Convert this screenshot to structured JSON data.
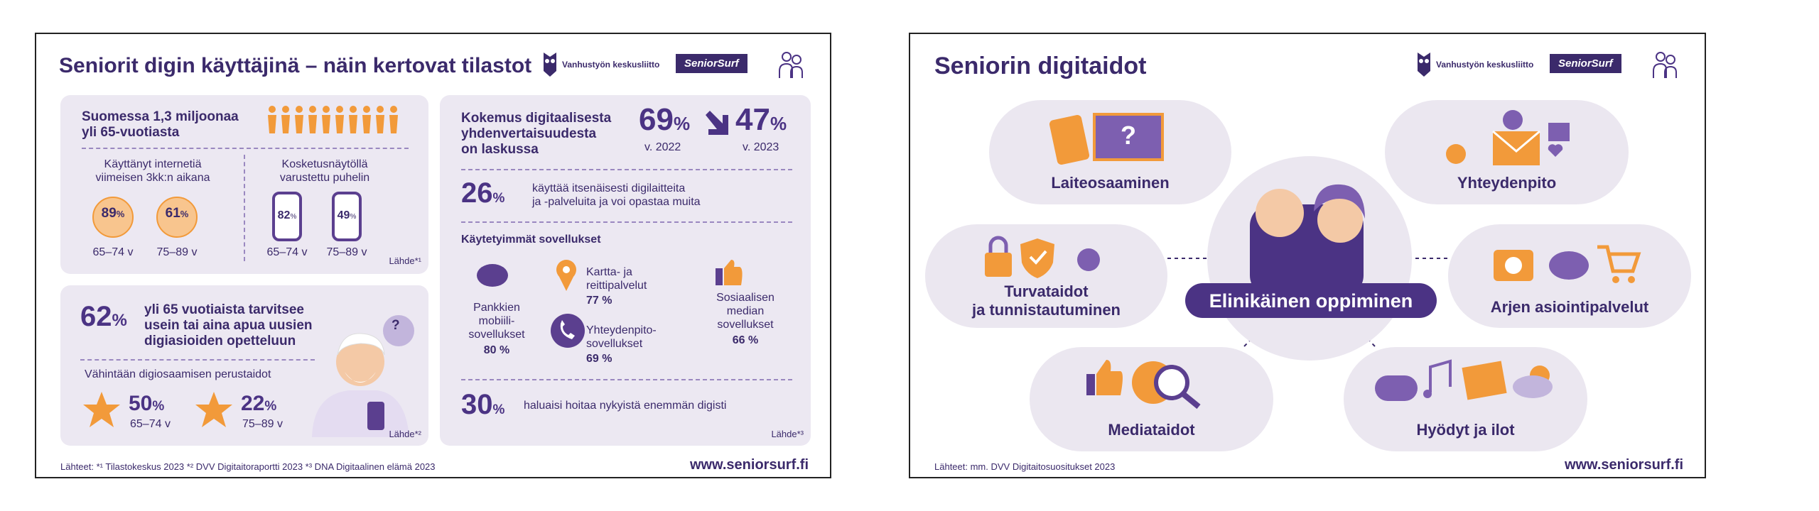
{
  "left": {
    "title": "Seniorit digin käyttäjinä – näin kertovat tilastot",
    "logos": [
      "Vanhustyön keskusliitto",
      "SeniorSurf"
    ],
    "population": "Suomessa 1,3 miljoonaa\nyli 65-vuotiasta",
    "internet": {
      "label": "Käyttänyt internetiä\nviimeisen 3kk:n aikana",
      "stats": [
        {
          "value": "89",
          "unit": "%",
          "group": "65–74 v"
        },
        {
          "value": "61",
          "unit": "%",
          "group": "75–89 v"
        }
      ]
    },
    "touchscreen": {
      "label": "Kosketusnäytöllä\nvarustettu puhelin",
      "stats": [
        {
          "value": "82",
          "unit": "%",
          "group": "65–74 v"
        },
        {
          "value": "49",
          "unit": "%",
          "group": "75–89 v"
        }
      ]
    },
    "source_1": "Lähde*¹",
    "help": {
      "value": "62",
      "unit": "%",
      "text": "yli 65 vuotiaista tarvitsee\nusein tai aina apua uusien\ndigiasioiden opetteluun",
      "bubble": "?",
      "skills_label": "Vähintään digiosaamisen perustaidot",
      "skills": [
        {
          "value": "50",
          "unit": "%",
          "group": "65–74 v"
        },
        {
          "value": "22",
          "unit": "%",
          "group": "75–89 v"
        }
      ],
      "source": "Lähde*²"
    },
    "equality": {
      "heading": "Kokemus digitaalisesta\nyhdenvertaisuudesta\non laskussa",
      "before": {
        "value": "69",
        "unit": "%",
        "year": "v. 2022"
      },
      "after": {
        "value": "47",
        "unit": "%",
        "year": "v. 2023"
      }
    },
    "independent": {
      "value": "26",
      "unit": "%",
      "text": "käyttää itsenäisesti digilaitteita\nja -palveluita ja voi opastaa muita"
    },
    "apps_heading": "Käytetyimmät sovellukset",
    "apps": [
      {
        "name": "Pankkien\nmobiili-\nsovellukset",
        "share": "80 %"
      },
      {
        "name": "Kartta- ja\nreittipalvelut",
        "share": "77 %"
      },
      {
        "name": "Yhteydenpito-\nsovellukset",
        "share": "69 %"
      },
      {
        "name": "Sosiaalisen\nmedian\nsovellukset",
        "share": "66 %"
      }
    ],
    "more_digital": {
      "value": "30",
      "unit": "%",
      "text": "haluaisi hoitaa nykyistä enemmän digisti"
    },
    "source_3": "Lähde*³",
    "footer": "Lähteet: *¹ Tilastokeskus 2023  *² DVV Digitaitoraportti 2023 *³ DNA Digitaalinen elämä 2023",
    "url": "www.seniorsurf.fi"
  },
  "right": {
    "title": "Seniorin digitaidot",
    "logos": [
      "Vanhustyön keskusliitto",
      "SeniorSurf"
    ],
    "center": "Elinikäinen oppiminen",
    "nodes": [
      "Laiteosaaminen",
      "Yhteydenpito",
      "Turvataidot\nja tunnistautuminen",
      "Arjen asiointipalvelut",
      "Mediataidot",
      "Hyödyt ja ilot"
    ],
    "footer": "Lähteet: mm. DVV Digitaitosuositukset 2023",
    "url": "www.seniorsurf.fi"
  }
}
